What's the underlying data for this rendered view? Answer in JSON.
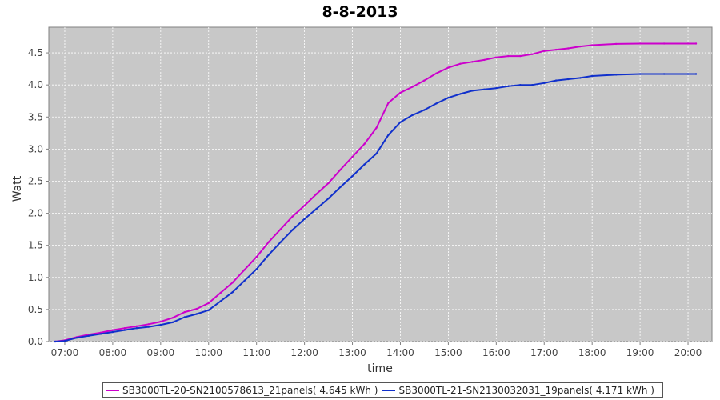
{
  "chart_data": {
    "type": "line",
    "title": "8-8-2013",
    "xlabel": "time",
    "ylabel": "Watt",
    "xlim": [
      "06:40",
      "20:30"
    ],
    "ylim": [
      0,
      4.9
    ],
    "grid": true,
    "legend_position": "bottom",
    "x_ticks": [
      "07:00",
      "08:00",
      "09:00",
      "10:00",
      "11:00",
      "12:00",
      "13:00",
      "14:00",
      "15:00",
      "16:00",
      "17:00",
      "18:00",
      "19:00",
      "20:00"
    ],
    "y_ticks": [
      "0.0",
      "0.5",
      "1.0",
      "1.5",
      "2.0",
      "2.5",
      "3.0",
      "3.5",
      "4.0",
      "4.5"
    ],
    "x": [
      "06:48",
      "07:00",
      "07:15",
      "07:30",
      "07:45",
      "08:00",
      "08:15",
      "08:30",
      "08:45",
      "09:00",
      "09:15",
      "09:30",
      "09:45",
      "10:00",
      "10:15",
      "10:30",
      "10:45",
      "11:00",
      "11:15",
      "11:30",
      "11:45",
      "12:00",
      "12:15",
      "12:30",
      "12:45",
      "13:00",
      "13:15",
      "13:30",
      "13:45",
      "14:00",
      "14:15",
      "14:30",
      "14:45",
      "15:00",
      "15:15",
      "15:30",
      "15:45",
      "16:00",
      "16:15",
      "16:30",
      "16:45",
      "17:00",
      "17:15",
      "17:30",
      "17:45",
      "18:00",
      "18:30",
      "19:00",
      "19:30",
      "20:00",
      "20:10"
    ],
    "series": [
      {
        "name": "SB3000TL-20-SN2100578613_21panels( 4.645 kWh )",
        "color": "#cc00cc",
        "values": [
          0.0,
          0.02,
          0.07,
          0.11,
          0.14,
          0.18,
          0.21,
          0.24,
          0.27,
          0.31,
          0.37,
          0.46,
          0.51,
          0.6,
          0.76,
          0.92,
          1.12,
          1.32,
          1.55,
          1.75,
          1.95,
          2.12,
          2.3,
          2.47,
          2.68,
          2.88,
          3.08,
          3.33,
          3.72,
          3.88,
          3.97,
          4.07,
          4.18,
          4.27,
          4.33,
          4.36,
          4.39,
          4.43,
          4.45,
          4.45,
          4.48,
          4.53,
          4.55,
          4.57,
          4.6,
          4.62,
          4.64,
          4.645,
          4.645,
          4.645,
          4.645
        ]
      },
      {
        "name": "SB3000TL-21-SN2130032031_19panels( 4.171 kWh )",
        "color": "#1030cc",
        "values": [
          0.0,
          0.01,
          0.06,
          0.09,
          0.12,
          0.15,
          0.18,
          0.21,
          0.23,
          0.26,
          0.3,
          0.38,
          0.43,
          0.49,
          0.63,
          0.77,
          0.95,
          1.13,
          1.35,
          1.55,
          1.74,
          1.91,
          2.07,
          2.23,
          2.41,
          2.58,
          2.76,
          2.93,
          3.22,
          3.42,
          3.53,
          3.61,
          3.71,
          3.8,
          3.86,
          3.91,
          3.93,
          3.95,
          3.98,
          4.0,
          4.0,
          4.03,
          4.07,
          4.09,
          4.11,
          4.14,
          4.16,
          4.171,
          4.171,
          4.171,
          4.171
        ]
      }
    ]
  }
}
